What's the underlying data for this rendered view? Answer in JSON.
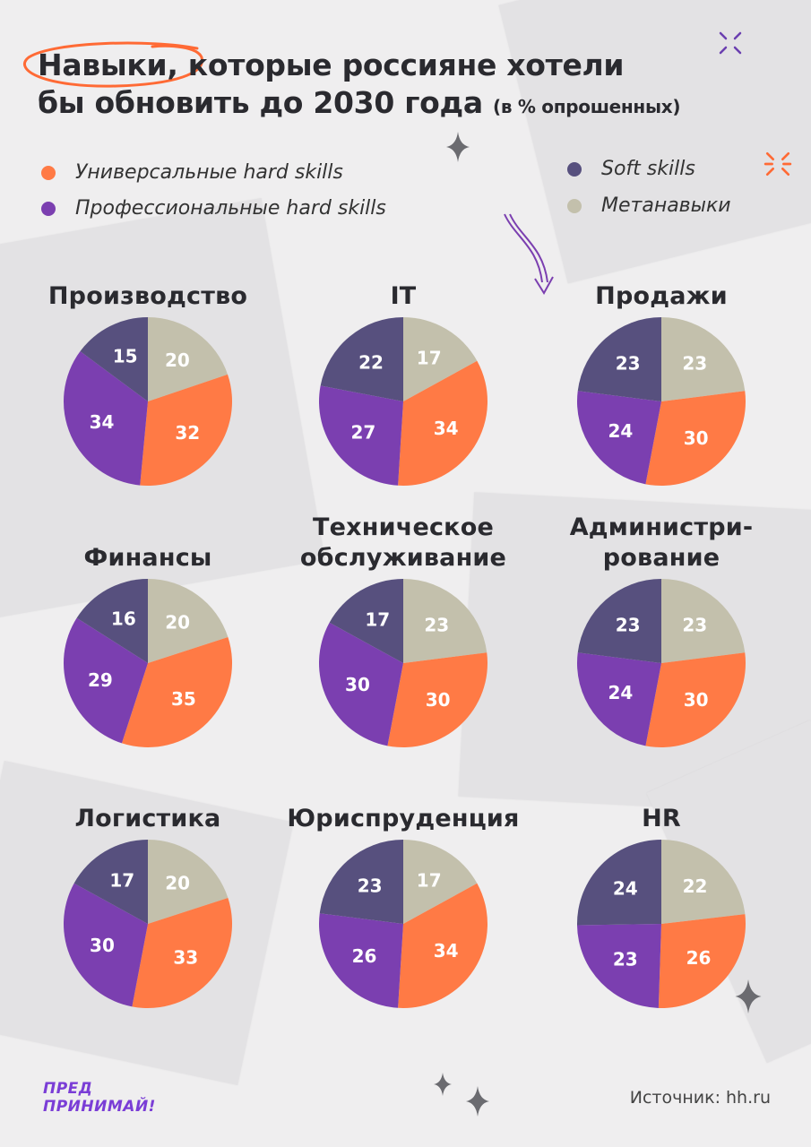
{
  "title": {
    "highlight": "Навыки",
    "line1_rest": ", которые россияне хотели",
    "line2": "бы обновить до 2030 года",
    "subtitle": "(в % опрошенных)"
  },
  "legend": [
    {
      "label": "Универсальные hard skills",
      "color": "#ff7a45"
    },
    {
      "label": "Профессиональные hard skills",
      "color": "#7b3fb0"
    },
    {
      "label": "Soft skills",
      "color": "#57507e"
    },
    {
      "label": "Метанавыки",
      "color": "#c3c0ac"
    }
  ],
  "chart_data": [
    {
      "type": "pie",
      "title": "Производство",
      "labels": [
        "Универсальные hard skills",
        "Профессиональные hard skills",
        "Soft skills",
        "Метанавыки"
      ],
      "values": [
        32,
        34,
        15,
        20
      ]
    },
    {
      "type": "pie",
      "title": "IT",
      "labels": [
        "Универсальные hard skills",
        "Профессиональные hard skills",
        "Soft skills",
        "Метанавыки"
      ],
      "values": [
        34,
        27,
        22,
        17
      ]
    },
    {
      "type": "pie",
      "title": "Продажи",
      "labels": [
        "Универсальные hard skills",
        "Профессиональные hard skills",
        "Soft skills",
        "Метанавыки"
      ],
      "values": [
        30,
        24,
        23,
        23
      ]
    },
    {
      "type": "pie",
      "title": "Финансы",
      "labels": [
        "Универсальные hard skills",
        "Профессиональные hard skills",
        "Soft skills",
        "Метанавыки"
      ],
      "values": [
        35,
        29,
        16,
        20
      ]
    },
    {
      "type": "pie",
      "title": "Техническое обслуживание",
      "labels": [
        "Универсальные hard skills",
        "Профессиональные hard skills",
        "Soft skills",
        "Метанавыки"
      ],
      "values": [
        30,
        30,
        17,
        23
      ]
    },
    {
      "type": "pie",
      "title": "Администри-рование",
      "labels": [
        "Универсальные hard skills",
        "Профессиональные hard skills",
        "Soft skills",
        "Метанавыки"
      ],
      "values": [
        30,
        24,
        23,
        23
      ]
    },
    {
      "type": "pie",
      "title": "Логистика",
      "labels": [
        "Универсальные hard skills",
        "Профессиональные hard skills",
        "Soft skills",
        "Метанавыки"
      ],
      "values": [
        33,
        30,
        17,
        20
      ]
    },
    {
      "type": "pie",
      "title": "Юриспруденция",
      "labels": [
        "Универсальные hard skills",
        "Профессиональные hard skills",
        "Soft skills",
        "Метанавыки"
      ],
      "values": [
        34,
        26,
        23,
        17
      ]
    },
    {
      "type": "pie",
      "title": "HR",
      "labels": [
        "Универсальные hard skills",
        "Профессиональные hard skills",
        "Soft skills",
        "Метанавыки"
      ],
      "values": [
        26,
        23,
        24,
        22
      ]
    }
  ],
  "logo": {
    "line1": "ПРЕД",
    "line2": "ПРИНИМАЙ!"
  },
  "source": "Источник: hh.ru",
  "colors": {
    "background": "#efeeef",
    "text": "#2a2a2f",
    "accent": "#ff7a45",
    "logo": "#7a3dd6"
  }
}
